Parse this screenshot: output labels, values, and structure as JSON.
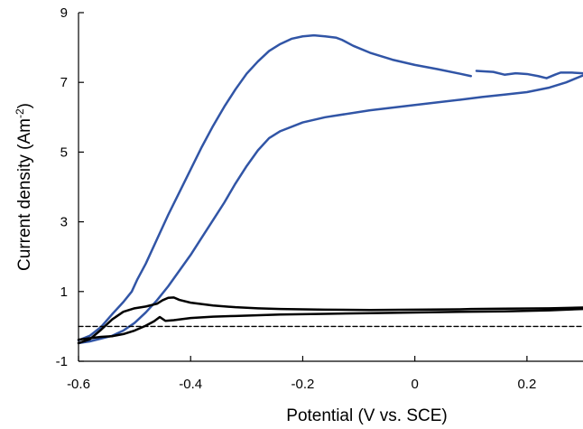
{
  "chart_data": {
    "type": "line",
    "title": "",
    "xlabel": "Potential (V vs. SCE)",
    "ylabel": {
      "base": "Current density (Am",
      "sup": "-2",
      "close": ")"
    },
    "xlim": [
      -0.6,
      0.3
    ],
    "ylim": [
      -1,
      9
    ],
    "xticks": [
      -0.6,
      -0.4,
      -0.2,
      0,
      0.2
    ],
    "xtick_labels": [
      "-0.6",
      "-0.4",
      "-0.2",
      "0",
      "0.2"
    ],
    "yticks": [
      -1,
      1,
      3,
      5,
      7,
      9
    ],
    "ytick_labels": [
      "-1",
      "1",
      "3",
      "5",
      "7",
      "9"
    ],
    "grid": false,
    "legend": "none",
    "colors": {
      "blue": "#3155a6",
      "black": "#000000"
    },
    "series": [
      {
        "color": "#3155a6",
        "style": "solid",
        "points": [
          [
            -0.6,
            -0.4
          ],
          [
            -0.58,
            -0.27
          ],
          [
            -0.56,
            -0.02
          ],
          [
            -0.54,
            0.35
          ],
          [
            -0.52,
            0.7
          ],
          [
            -0.505,
            1.0
          ],
          [
            -0.495,
            1.35
          ],
          [
            -0.48,
            1.8
          ],
          [
            -0.46,
            2.5
          ],
          [
            -0.44,
            3.2
          ],
          [
            -0.42,
            3.85
          ],
          [
            -0.4,
            4.5
          ],
          [
            -0.38,
            5.15
          ],
          [
            -0.36,
            5.75
          ],
          [
            -0.34,
            6.3
          ],
          [
            -0.32,
            6.8
          ],
          [
            -0.3,
            7.25
          ],
          [
            -0.28,
            7.6
          ],
          [
            -0.26,
            7.9
          ],
          [
            -0.24,
            8.1
          ],
          [
            -0.22,
            8.25
          ],
          [
            -0.2,
            8.32
          ],
          [
            -0.18,
            8.35
          ],
          [
            -0.16,
            8.32
          ],
          [
            -0.14,
            8.28
          ],
          [
            -0.13,
            8.22
          ],
          [
            -0.11,
            8.05
          ],
          [
            -0.08,
            7.85
          ],
          [
            -0.04,
            7.65
          ],
          [
            0.0,
            7.5
          ],
          [
            0.04,
            7.38
          ],
          [
            0.08,
            7.25
          ],
          [
            0.1,
            7.18
          ]
        ]
      },
      {
        "color": "#3155a6",
        "style": "solid",
        "points": [
          [
            0.11,
            7.33
          ],
          [
            0.14,
            7.3
          ],
          [
            0.16,
            7.22
          ],
          [
            0.18,
            7.26
          ],
          [
            0.2,
            7.24
          ],
          [
            0.22,
            7.18
          ],
          [
            0.235,
            7.12
          ],
          [
            0.25,
            7.22
          ],
          [
            0.26,
            7.28
          ],
          [
            0.28,
            7.28
          ],
          [
            0.3,
            7.26
          ]
        ]
      },
      {
        "color": "#3155a6",
        "style": "solid",
        "points": [
          [
            0.3,
            7.2
          ],
          [
            0.27,
            7.0
          ],
          [
            0.24,
            6.85
          ],
          [
            0.2,
            6.72
          ],
          [
            0.16,
            6.65
          ],
          [
            0.12,
            6.58
          ],
          [
            0.08,
            6.5
          ],
          [
            0.0,
            6.35
          ],
          [
            -0.08,
            6.2
          ],
          [
            -0.16,
            6.0
          ],
          [
            -0.2,
            5.85
          ],
          [
            -0.24,
            5.6
          ],
          [
            -0.26,
            5.4
          ],
          [
            -0.28,
            5.05
          ],
          [
            -0.3,
            4.6
          ],
          [
            -0.32,
            4.1
          ],
          [
            -0.34,
            3.55
          ],
          [
            -0.36,
            3.05
          ],
          [
            -0.38,
            2.55
          ],
          [
            -0.4,
            2.05
          ],
          [
            -0.42,
            1.6
          ],
          [
            -0.44,
            1.15
          ],
          [
            -0.46,
            0.75
          ],
          [
            -0.48,
            0.4
          ],
          [
            -0.5,
            0.1
          ],
          [
            -0.52,
            -0.12
          ],
          [
            -0.54,
            -0.27
          ],
          [
            -0.56,
            -0.35
          ],
          [
            -0.58,
            -0.43
          ],
          [
            -0.6,
            -0.48
          ]
        ]
      },
      {
        "color": "#000000",
        "style": "solid",
        "points": [
          [
            -0.6,
            -0.48
          ],
          [
            -0.58,
            -0.37
          ],
          [
            -0.56,
            -0.1
          ],
          [
            -0.54,
            0.2
          ],
          [
            -0.52,
            0.42
          ],
          [
            -0.5,
            0.52
          ],
          [
            -0.48,
            0.57
          ],
          [
            -0.46,
            0.65
          ],
          [
            -0.45,
            0.75
          ],
          [
            -0.44,
            0.82
          ],
          [
            -0.43,
            0.83
          ],
          [
            -0.42,
            0.76
          ],
          [
            -0.4,
            0.68
          ],
          [
            -0.36,
            0.6
          ],
          [
            -0.32,
            0.55
          ],
          [
            -0.28,
            0.52
          ],
          [
            -0.24,
            0.5
          ],
          [
            -0.16,
            0.48
          ],
          [
            -0.08,
            0.47
          ],
          [
            0.0,
            0.48
          ],
          [
            0.08,
            0.49
          ],
          [
            0.1,
            0.5
          ],
          [
            0.16,
            0.51
          ],
          [
            0.24,
            0.52
          ],
          [
            0.3,
            0.54
          ]
        ]
      },
      {
        "color": "#000000",
        "style": "solid",
        "points": [
          [
            0.3,
            0.5
          ],
          [
            0.24,
            0.46
          ],
          [
            0.16,
            0.43
          ],
          [
            0.08,
            0.42
          ],
          [
            0.0,
            0.4
          ],
          [
            -0.08,
            0.38
          ],
          [
            -0.16,
            0.36
          ],
          [
            -0.24,
            0.34
          ],
          [
            -0.32,
            0.3
          ],
          [
            -0.36,
            0.28
          ],
          [
            -0.4,
            0.24
          ],
          [
            -0.43,
            0.18
          ],
          [
            -0.445,
            0.16
          ],
          [
            -0.455,
            0.27
          ],
          [
            -0.465,
            0.15
          ],
          [
            -0.48,
            0.02
          ],
          [
            -0.5,
            -0.12
          ],
          [
            -0.52,
            -0.22
          ],
          [
            -0.54,
            -0.28
          ],
          [
            -0.56,
            -0.3
          ],
          [
            -0.58,
            -0.34
          ],
          [
            -0.6,
            -0.38
          ]
        ]
      },
      {
        "color": "#000000",
        "style": "dashed",
        "points": [
          [
            -0.6,
            0.0
          ],
          [
            0.3,
            0.0
          ]
        ]
      }
    ]
  }
}
